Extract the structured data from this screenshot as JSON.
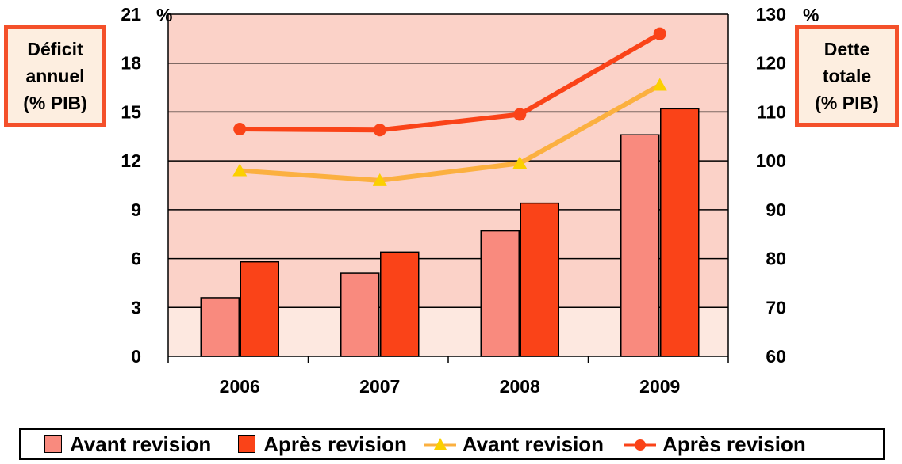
{
  "chart_data": {
    "type": "bar",
    "categories": [
      "2006",
      "2007",
      "2008",
      "2009"
    ],
    "left_axis": {
      "title_lines": [
        "Déficit",
        "annuel",
        "(% PIB)"
      ],
      "unit": "%",
      "ylim": [
        0,
        21
      ],
      "ticks": [
        "0",
        "3",
        "6",
        "9",
        "12",
        "15",
        "18",
        "21"
      ]
    },
    "right_axis": {
      "title_lines": [
        "Dette",
        "totale",
        "(% PIB)"
      ],
      "unit": "%",
      "ylim": [
        60,
        130
      ],
      "ticks": [
        "60",
        "70",
        "80",
        "90",
        "100",
        "110",
        "120",
        "130"
      ]
    },
    "bar_series": [
      {
        "name": "Avant revision",
        "axis": "left",
        "color": "#f98a7e",
        "values": [
          3.6,
          5.1,
          7.7,
          13.6
        ]
      },
      {
        "name": "Après revision",
        "axis": "left",
        "color": "#fa4318",
        "values": [
          5.8,
          6.4,
          9.4,
          15.2
        ]
      }
    ],
    "line_series": [
      {
        "name": "Avant revision",
        "axis": "right",
        "color": "#fbb040",
        "marker": "triangle",
        "values": [
          98,
          96,
          99.5,
          115.5
        ]
      },
      {
        "name": "Après revision",
        "axis": "right",
        "color": "#fa4318",
        "marker": "circle",
        "values": [
          106.5,
          106.3,
          109.5,
          126
        ]
      }
    ],
    "grid": true,
    "legend_position": "bottom"
  }
}
